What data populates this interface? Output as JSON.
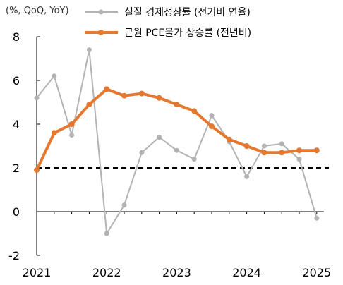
{
  "chart_data": {
    "type": "line",
    "unit_label": "(%, QoQ, YoY)",
    "ylim": [
      -2,
      8
    ],
    "yticks": [
      "-2",
      "0",
      "2",
      "4",
      "6",
      "8"
    ],
    "xlabels": [
      "2021",
      "2022",
      "2023",
      "2024",
      "2025"
    ],
    "reference_line": 2,
    "colors": {
      "gdp": "#b3b3b3",
      "pce": "#e5782f",
      "ref": "#000000",
      "axis": "#000000"
    },
    "series": [
      {
        "key": "gdp",
        "name": "실질 경제성장률 (전기비 연율)",
        "x": [
          "2021Q1",
          "2021Q2",
          "2021Q3",
          "2021Q4",
          "2022Q1",
          "2022Q2",
          "2022Q3",
          "2022Q4",
          "2023Q1",
          "2023Q2",
          "2023Q3",
          "2023Q4",
          "2024Q1",
          "2024Q2",
          "2024Q3",
          "2024Q4",
          "2025Q1"
        ],
        "values": [
          5.2,
          6.2,
          3.5,
          7.4,
          -1.0,
          0.3,
          2.7,
          3.4,
          2.8,
          2.4,
          4.4,
          3.2,
          1.6,
          3.0,
          3.1,
          2.4,
          -0.3
        ]
      },
      {
        "key": "pce",
        "name": "근원 PCE물가 상승률 (전년비)",
        "x": [
          "2021Q1",
          "2021Q2",
          "2021Q3",
          "2021Q4",
          "2022Q1",
          "2022Q2",
          "2022Q3",
          "2022Q4",
          "2023Q1",
          "2023Q2",
          "2023Q3",
          "2023Q4",
          "2024Q1",
          "2024Q2",
          "2024Q3",
          "2024Q4",
          "2025Q1"
        ],
        "values": [
          1.9,
          3.6,
          4.0,
          4.9,
          5.6,
          5.3,
          5.4,
          5.2,
          4.9,
          4.6,
          3.9,
          3.3,
          3.0,
          2.7,
          2.7,
          2.8,
          2.8
        ]
      }
    ]
  }
}
